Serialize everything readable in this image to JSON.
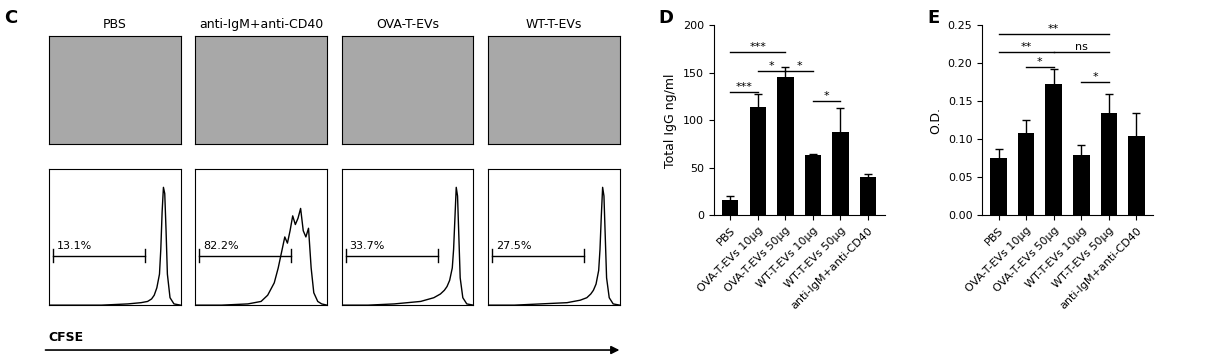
{
  "panel_labels": [
    "C",
    "D",
    "E"
  ],
  "images": {
    "titles": [
      "PBS",
      "anti-IgM+anti-CD40",
      "OVA-T-EVs",
      "WT-T-EVs"
    ]
  },
  "flow_xlabel": "CFSE",
  "chart_data": [
    {
      "type": "line",
      "tick_labels": false,
      "xlim": [
        0,
        100
      ],
      "ylim": [
        0,
        110
      ],
      "color": "#000000",
      "x": [
        0,
        20,
        40,
        60,
        70,
        75,
        78,
        80,
        82,
        84,
        85,
        86,
        87,
        88,
        89,
        90,
        92,
        95,
        100
      ],
      "values": [
        0,
        0,
        0,
        1,
        2,
        3,
        5,
        8,
        14,
        25,
        45,
        75,
        95,
        90,
        60,
        25,
        6,
        1,
        0
      ],
      "gate_x": [
        3,
        73
      ],
      "gate_y": 40,
      "annotations": [
        "13.1%"
      ]
    },
    {
      "type": "line",
      "tick_labels": false,
      "xlim": [
        0,
        100
      ],
      "ylim": [
        0,
        110
      ],
      "color": "#000000",
      "x": [
        0,
        20,
        40,
        50,
        55,
        60,
        63,
        66,
        68,
        70,
        72,
        74,
        76,
        78,
        80,
        82,
        84,
        86,
        88,
        90,
        93,
        96,
        100
      ],
      "values": [
        0,
        0,
        1,
        3,
        8,
        18,
        30,
        45,
        55,
        50,
        60,
        72,
        65,
        70,
        78,
        60,
        55,
        62,
        30,
        10,
        3,
        1,
        0
      ],
      "gate_x": [
        3,
        73
      ],
      "gate_y": 40,
      "annotations": [
        "82.2%"
      ]
    },
    {
      "type": "line",
      "tick_labels": false,
      "xlim": [
        0,
        100
      ],
      "ylim": [
        0,
        110
      ],
      "color": "#000000",
      "x": [
        0,
        20,
        40,
        60,
        70,
        75,
        78,
        80,
        82,
        84,
        85,
        86,
        87,
        88,
        89,
        90,
        92,
        95,
        100
      ],
      "values": [
        0,
        0,
        1,
        3,
        6,
        9,
        12,
        15,
        20,
        30,
        45,
        70,
        95,
        88,
        55,
        22,
        6,
        1,
        0
      ],
      "gate_x": [
        3,
        73
      ],
      "gate_y": 40,
      "annotations": [
        "33.7%"
      ]
    },
    {
      "type": "line",
      "tick_labels": false,
      "xlim": [
        0,
        100
      ],
      "ylim": [
        0,
        110
      ],
      "color": "#000000",
      "x": [
        0,
        20,
        40,
        60,
        70,
        75,
        78,
        80,
        82,
        84,
        85,
        86,
        87,
        88,
        89,
        90,
        92,
        95,
        100
      ],
      "values": [
        0,
        0,
        1,
        2,
        4,
        6,
        9,
        12,
        17,
        28,
        45,
        72,
        95,
        88,
        55,
        22,
        6,
        1,
        0
      ],
      "gate_x": [
        3,
        73
      ],
      "gate_y": 40,
      "annotations": [
        "27.5%"
      ]
    },
    {
      "type": "bar",
      "color": "#000000",
      "ylabel": "Total IgG ng/ml",
      "categories": [
        "PBS",
        "OVA-T-EVs 10μg",
        "OVA-T-EVs 50μg",
        "WT-T-EVs 10μg",
        "WT-T-EVs 50μg",
        "anti-IgM+anti-CD40"
      ],
      "values": [
        16,
        114,
        146,
        63,
        88,
        40
      ],
      "error": [
        4,
        14,
        10,
        2,
        25,
        3
      ],
      "ylim": [
        0,
        200
      ],
      "yticks": [
        0,
        50,
        100,
        150,
        200
      ],
      "significance": [
        {
          "from": 0,
          "to": 2,
          "label": "***",
          "y": 172
        },
        {
          "from": 0,
          "to": 1,
          "label": "***",
          "y": 130
        },
        {
          "from": 1,
          "to": 2,
          "label": "*",
          "y": 152
        },
        {
          "from": 2,
          "to": 3,
          "label": "*",
          "y": 152
        },
        {
          "from": 3,
          "to": 4,
          "label": "*",
          "y": 120
        }
      ]
    },
    {
      "type": "bar",
      "color": "#000000",
      "ylabel": "O.D.",
      "categories": [
        "PBS",
        "OVA-T-EVs 10μg",
        "OVA-T-EVs 50μg",
        "WT-T-EVs 10μg",
        "WT-T-EVs 50μg",
        "anti-IgM+anti-CD40"
      ],
      "values": [
        0.075,
        0.108,
        0.172,
        0.08,
        0.135,
        0.104
      ],
      "error": [
        0.012,
        0.018,
        0.02,
        0.013,
        0.025,
        0.03
      ],
      "ylim": [
        0,
        0.25
      ],
      "yticks": [
        {
          "value": 0,
          "label": "0.00"
        },
        {
          "value": 0.05,
          "label": "0.05"
        },
        {
          "value": 0.1,
          "label": "0.10"
        },
        {
          "value": 0.15,
          "label": "0.15"
        },
        {
          "value": 0.2,
          "label": "0.20"
        },
        {
          "value": 0.25,
          "label": "0.25"
        }
      ],
      "significance": [
        {
          "from": 0,
          "to": 4,
          "label": "**",
          "y": 0.238
        },
        {
          "from": 0,
          "to": 2,
          "label": "**",
          "y": 0.215
        },
        {
          "from": 2,
          "to": 4,
          "label": "ns",
          "y": 0.215
        },
        {
          "from": 1,
          "to": 2,
          "label": "*",
          "y": 0.195
        },
        {
          "from": 3,
          "to": 4,
          "label": "*",
          "y": 0.175
        }
      ]
    }
  ]
}
